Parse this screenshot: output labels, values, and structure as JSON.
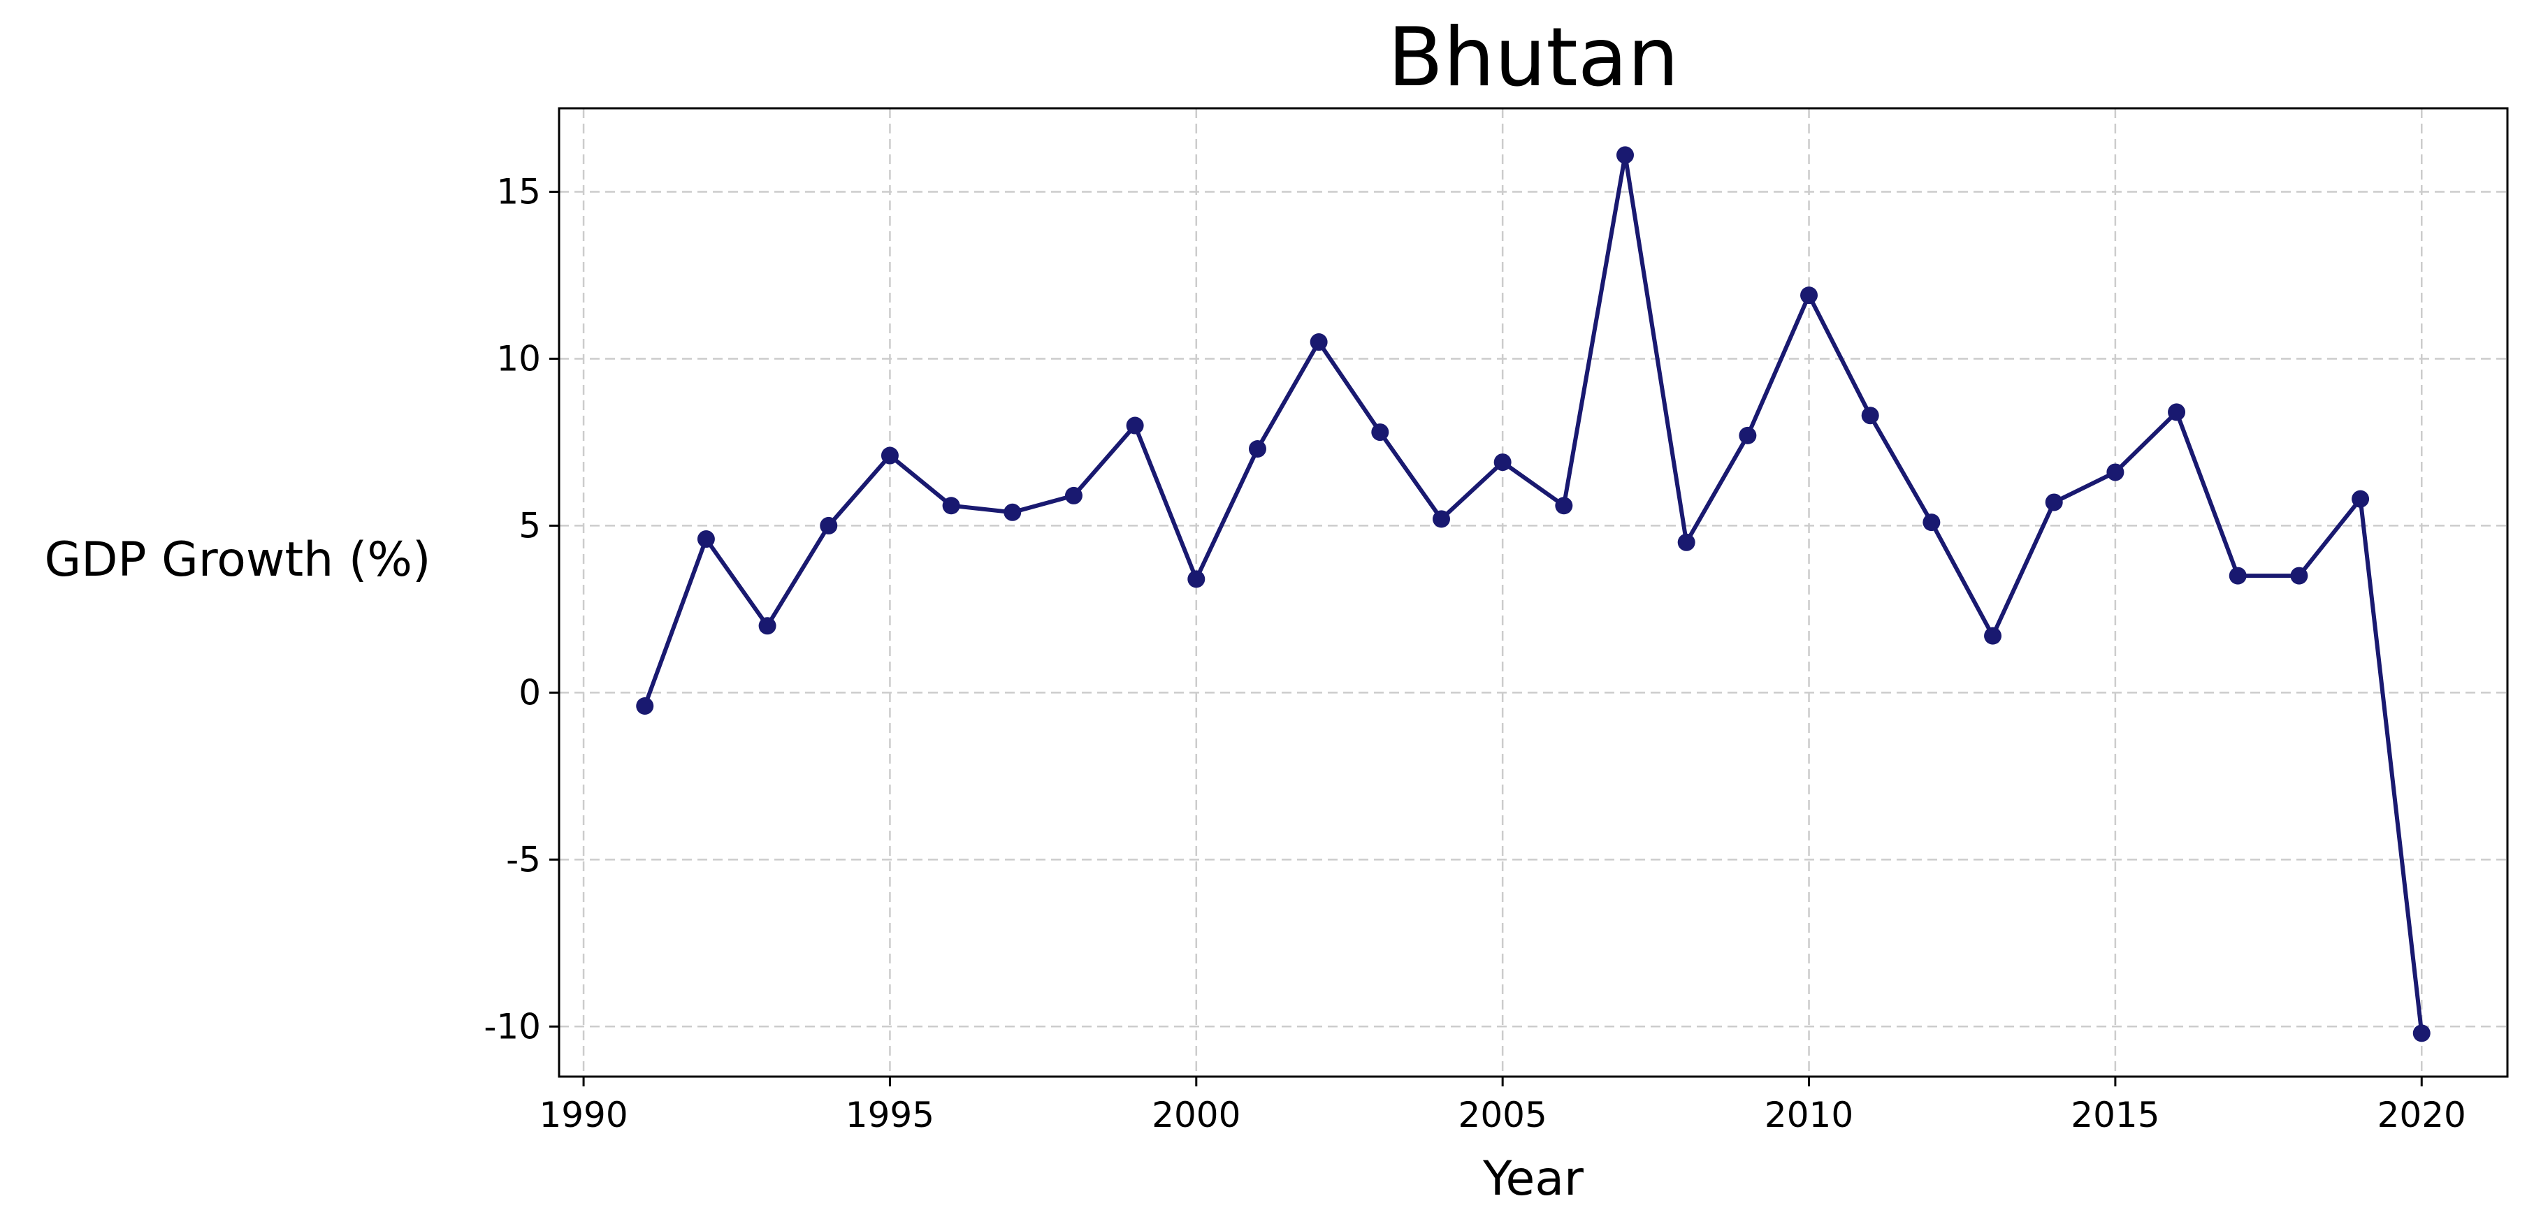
{
  "chart_data": {
    "type": "line",
    "title": "Bhutan",
    "xlabel": "Year",
    "ylabel": "GDP Growth (%)",
    "xlim": [
      1989.6,
      2021.4
    ],
    "ylim": [
      -11.5,
      17.5
    ],
    "x_ticks": [
      1990,
      1995,
      2000,
      2005,
      2010,
      2015,
      2020
    ],
    "y_ticks": [
      -10,
      -5,
      0,
      5,
      10,
      15
    ],
    "grid": true,
    "line_color": "#191970",
    "marker": "circle",
    "series": [
      {
        "x": [
          1991,
          1992,
          1993,
          1994,
          1995,
          1996,
          1997,
          1998,
          1999,
          2000,
          2001,
          2002,
          2003,
          2004,
          2005,
          2006,
          2007,
          2008,
          2009,
          2010,
          2011,
          2012,
          2013,
          2014,
          2015,
          2016,
          2017,
          2018,
          2019,
          2020
        ],
        "values": [
          -0.4,
          4.6,
          2.0,
          5.0,
          7.1,
          5.6,
          5.4,
          5.9,
          8.0,
          3.4,
          7.3,
          10.5,
          7.8,
          5.2,
          6.9,
          5.6,
          16.1,
          4.5,
          7.7,
          11.9,
          8.3,
          5.1,
          1.7,
          5.7,
          6.6,
          8.4,
          3.5,
          3.5,
          5.8,
          -10.2
        ]
      }
    ]
  }
}
